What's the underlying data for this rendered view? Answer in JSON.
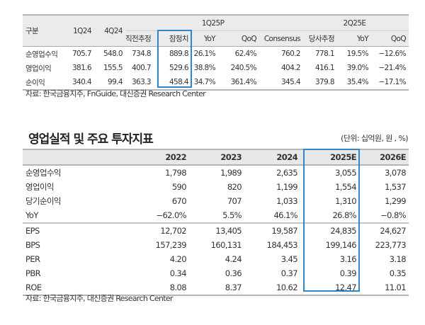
{
  "quarterly": {
    "header": {
      "label": "구분",
      "q1": "1Q24",
      "q4": "4Q24",
      "group1": "1Q25P",
      "group2": "2Q25E",
      "sub": [
        "직전추정",
        "잠정치",
        "YoY",
        "QoQ",
        "Consensus",
        "당사추정",
        "YoY",
        "QoQ"
      ]
    },
    "rows": [
      {
        "label": "순영업수익",
        "values": [
          "705.7",
          "548.0",
          "734.8",
          "889.8",
          "26.1%",
          "62.4%",
          "760.2",
          "778.1",
          "19.5%",
          "−12.6%"
        ]
      },
      {
        "label": "영업이익",
        "values": [
          "381.6",
          "155.5",
          "400.7",
          "529.6",
          "38.8%",
          "240.5%",
          "404.2",
          "416.1",
          "39.0%",
          "−21.4%"
        ]
      },
      {
        "label": "순이익",
        "values": [
          "340.4",
          "99.4",
          "363.3",
          "458.4",
          "34.7%",
          "361.4%",
          "345.4",
          "379.8",
          "35.4%",
          "−17.1%"
        ]
      }
    ],
    "source": "자료: 한국금융지주, FnGuide, 대신증권 Research Center"
  },
  "annual": {
    "title": "영업실적 및 주요 투자지표",
    "unit": "(단위: 십억원, 원 , %)",
    "years": [
      "2022",
      "2023",
      "2024",
      "2025E",
      "2026E"
    ],
    "rows": [
      {
        "label": "순영업수익",
        "values": [
          "1,798",
          "1,989",
          "2,635",
          "3,055",
          "3,078"
        ]
      },
      {
        "label": "영업이익",
        "values": [
          "590",
          "820",
          "1,199",
          "1,554",
          "1,537"
        ]
      },
      {
        "label": "당기순이익",
        "values": [
          "670",
          "707",
          "1,033",
          "1,310",
          "1,299"
        ]
      },
      {
        "label": "YoY",
        "values": [
          "−62.0%",
          "5.5%",
          "46.1%",
          "26.8%",
          "−0.8%"
        ]
      },
      {
        "label": "EPS",
        "values": [
          "12,702",
          "13,405",
          "19,587",
          "24,835",
          "24,627"
        ]
      },
      {
        "label": "BPS",
        "values": [
          "157,239",
          "160,131",
          "184,453",
          "199,146",
          "223,773"
        ]
      },
      {
        "label": "PER",
        "values": [
          "4.20",
          "4.24",
          "3.45",
          "3.16",
          "3.18"
        ]
      },
      {
        "label": "PBR",
        "values": [
          "0.34",
          "0.36",
          "0.37",
          "0.39",
          "0.35"
        ]
      },
      {
        "label": "ROE",
        "values": [
          "8.08",
          "8.37",
          "10.62",
          "12.47",
          "11.01"
        ]
      }
    ],
    "source": "자료: 한국금융지주, 대신증권 Research Center"
  },
  "colors": {
    "highlight_box": "#2f86cf",
    "header_bg": "#ebebeb"
  }
}
